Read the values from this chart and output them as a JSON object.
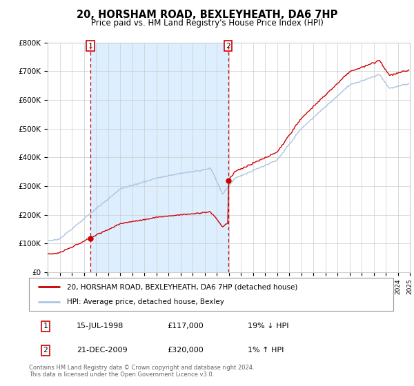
{
  "title": "20, HORSHAM ROAD, BEXLEYHEATH, DA6 7HP",
  "subtitle": "Price paid vs. HM Land Registry's House Price Index (HPI)",
  "ylim": [
    0,
    800000
  ],
  "yticks": [
    0,
    100000,
    200000,
    300000,
    400000,
    500000,
    600000,
    700000,
    800000
  ],
  "ytick_labels": [
    "£0",
    "£100K",
    "£200K",
    "£300K",
    "£400K",
    "£500K",
    "£600K",
    "£700K",
    "£800K"
  ],
  "sale1_t": 1998.54,
  "sale1_price": 117000,
  "sale2_t": 2009.96,
  "sale2_price": 320000,
  "hpi_color": "#aac4e0",
  "price_color": "#cc0000",
  "shade_color": "#ddeeff",
  "vline_color": "#cc0000",
  "legend_line1": "20, HORSHAM ROAD, BEXLEYHEATH, DA6 7HP (detached house)",
  "legend_line2": "HPI: Average price, detached house, Bexley",
  "table_row1": [
    "1",
    "15-JUL-1998",
    "£117,000",
    "19% ↓ HPI"
  ],
  "table_row2": [
    "2",
    "21-DEC-2009",
    "£320,000",
    "1% ↑ HPI"
  ],
  "footer1": "Contains HM Land Registry data © Crown copyright and database right 2024.",
  "footer2": "This data is licensed under the Open Government Licence v3.0.",
  "background_color": "#ffffff",
  "grid_color": "#cccccc"
}
